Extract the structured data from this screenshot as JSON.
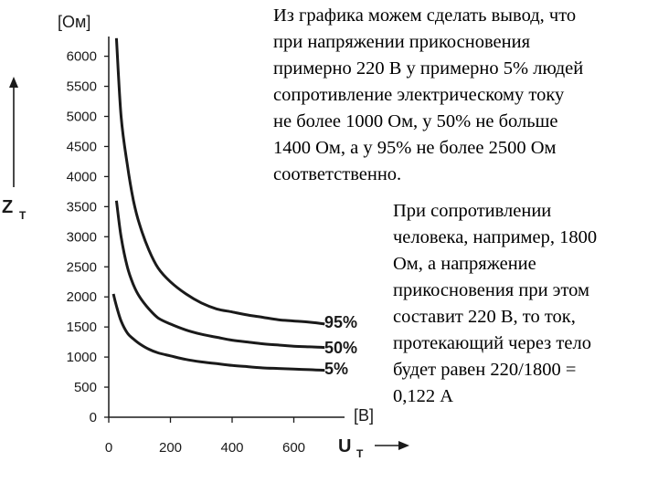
{
  "text": {
    "paragraph_1": "Из графика можем сделать вывод, что\nпри напряжении прикосновения\nпримерно 220 В у примерно 5% людей\nсопротивление электрическому току\nне более 1000 Ом, у 50% не больше\n1400 Ом, а у 95% не более 2500 Ом\nсоответственно.",
    "paragraph_2": "При сопротивлении\nчеловека, например, 1800\nОм, а напряжение\nприкосновения при этом\nсоставит 220 В, то ток,\nпротекающий через тело\nбудет равен 220/1800 =\n0,122 А"
  },
  "chart_data": {
    "type": "line",
    "ylabel": "Z",
    "ylabel_sub": "T",
    "y_unit": "[Ом]",
    "xlabel": "U",
    "xlabel_sub": "T",
    "x_unit": "[В]",
    "xlim": [
      0,
      800
    ],
    "ylim": [
      0,
      6000
    ],
    "x_ticks": [
      0,
      200,
      400,
      600
    ],
    "y_ticks": [
      0,
      500,
      1000,
      1500,
      2000,
      2500,
      3000,
      3500,
      4000,
      4500,
      5000,
      5500,
      6000
    ],
    "grid": false,
    "series": [
      {
        "name": "95%",
        "x": [
          25,
          40,
          60,
          80,
          100,
          130,
          160,
          200,
          250,
          300,
          350,
          400,
          450,
          500,
          550,
          600,
          650,
          700
        ],
        "y": [
          6300,
          5000,
          4200,
          3600,
          3200,
          2780,
          2480,
          2250,
          2050,
          1900,
          1800,
          1750,
          1700,
          1660,
          1620,
          1600,
          1580,
          1550
        ]
      },
      {
        "name": "50%",
        "x": [
          25,
          40,
          60,
          80,
          100,
          130,
          160,
          200,
          250,
          300,
          350,
          400,
          450,
          500,
          550,
          600,
          650,
          700
        ],
        "y": [
          3600,
          3000,
          2500,
          2200,
          2000,
          1800,
          1650,
          1550,
          1450,
          1380,
          1330,
          1280,
          1250,
          1220,
          1200,
          1180,
          1170,
          1160
        ]
      },
      {
        "name": "5%",
        "x": [
          15,
          25,
          40,
          60,
          80,
          100,
          130,
          160,
          200,
          250,
          300,
          350,
          400,
          450,
          500,
          550,
          600,
          650,
          700
        ],
        "y": [
          2050,
          1850,
          1600,
          1400,
          1300,
          1220,
          1130,
          1070,
          1020,
          960,
          920,
          890,
          860,
          840,
          820,
          810,
          800,
          790,
          780
        ]
      }
    ]
  }
}
